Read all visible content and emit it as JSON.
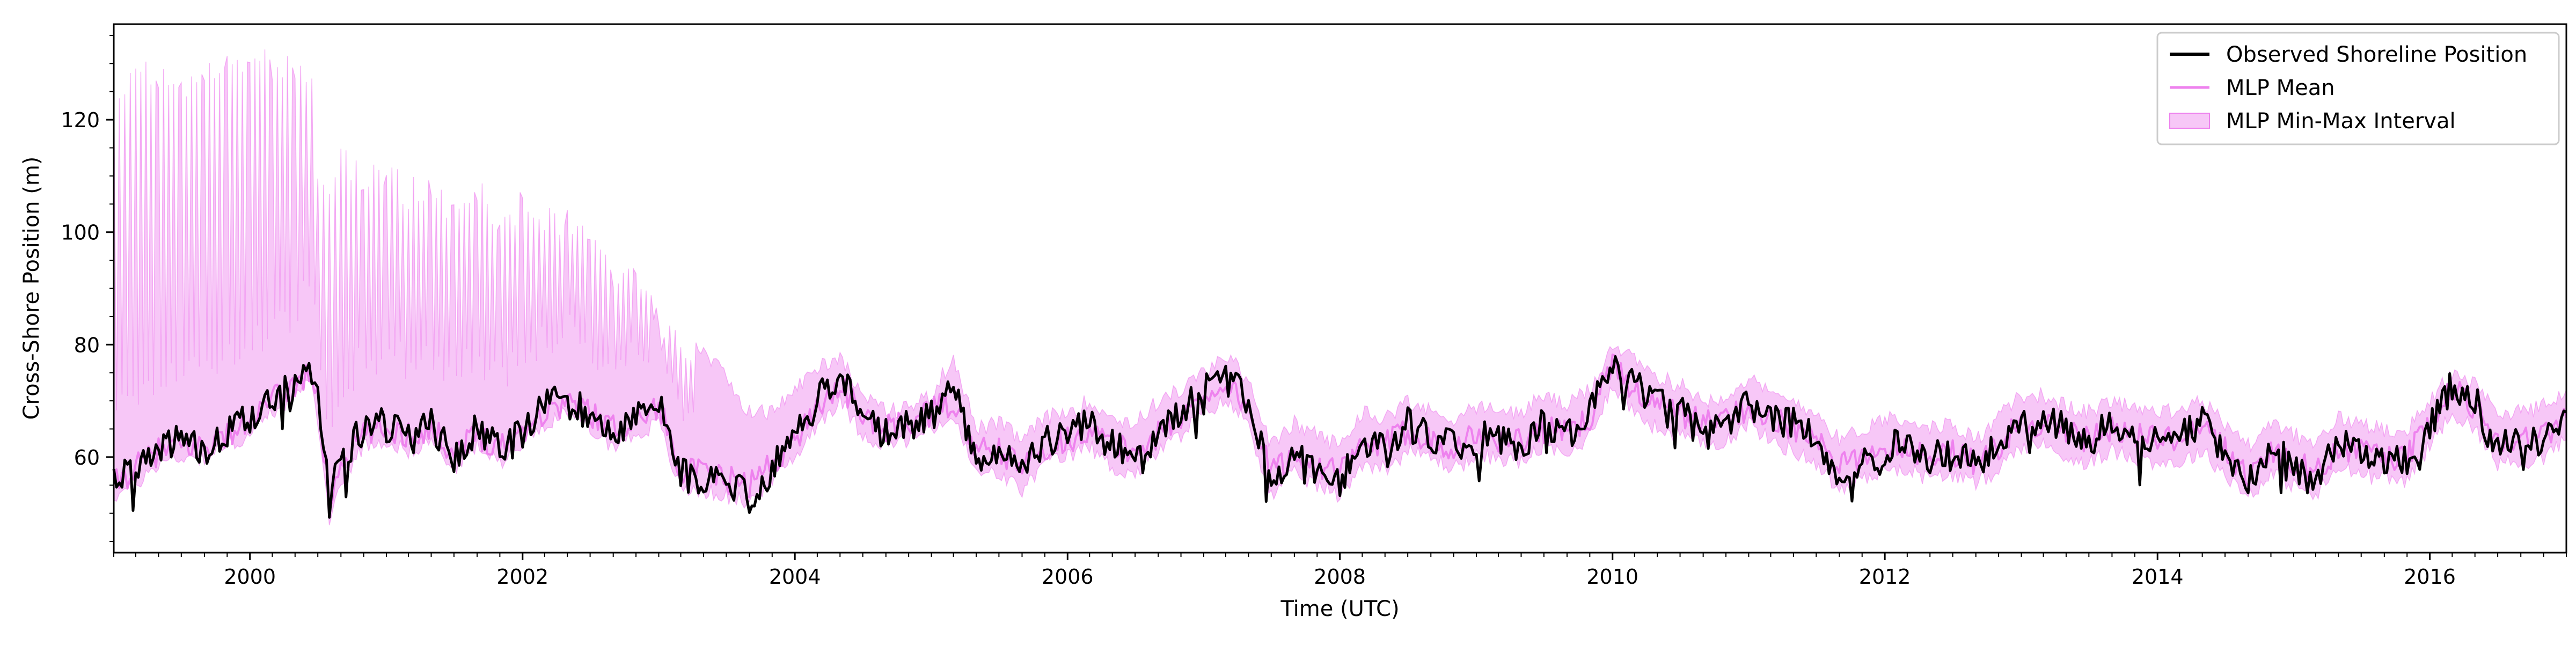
{
  "chart_data": {
    "type": "line",
    "title": "",
    "xlabel": "Time (UTC)",
    "ylabel": "Cross-Shore Position (m)",
    "xlim": [
      "1999-01-01",
      "2017-01-01"
    ],
    "ylim": [
      43,
      137
    ],
    "x_ticks": [
      "2000",
      "2002",
      "2004",
      "2006",
      "2008",
      "2010",
      "2012",
      "2014",
      "2016"
    ],
    "y_ticks": [
      60,
      80,
      100,
      120
    ],
    "grid": false,
    "legend_position": "top-right",
    "legend": [
      {
        "label": "Observed Shoreline Position",
        "kind": "line",
        "color": "#000000"
      },
      {
        "label": "MLP Mean",
        "kind": "line",
        "color": "#ee82ee"
      },
      {
        "label": "MLP Min-Max Interval",
        "kind": "patch",
        "color": "#ee82ee"
      }
    ],
    "colors": {
      "observed": "#000000",
      "mean": "#ee82ee",
      "interval": "#ee82ee"
    },
    "series": [
      {
        "name": "Observed Shoreline Position",
        "x": [
          "1999-01-01",
          "1999-03-01",
          "1999-05-01",
          "1999-07-01",
          "1999-09-01",
          "1999-11-01",
          "2000-01-01",
          "2000-03-01",
          "2000-05-01",
          "2000-06-15",
          "2000-07-01",
          "2000-08-01",
          "2000-09-01",
          "2000-11-01",
          "2001-01-01",
          "2001-03-01",
          "2001-05-01",
          "2001-07-01",
          "2001-09-01",
          "2001-11-01",
          "2002-01-01",
          "2002-03-01",
          "2002-05-01",
          "2002-07-01",
          "2002-09-01",
          "2002-11-01",
          "2003-01-01",
          "2003-03-01",
          "2003-05-01",
          "2003-07-01",
          "2003-09-01",
          "2003-11-01",
          "2004-01-01",
          "2004-03-01",
          "2004-05-01",
          "2004-07-01",
          "2004-09-01",
          "2004-11-01",
          "2005-01-01",
          "2005-03-01",
          "2005-05-01",
          "2005-07-01",
          "2005-09-01",
          "2005-11-01",
          "2006-01-01",
          "2006-03-01",
          "2006-05-01",
          "2006-07-01",
          "2006-09-01",
          "2006-11-01",
          "2007-01-01",
          "2007-03-01",
          "2007-05-01",
          "2007-07-01",
          "2007-09-01",
          "2007-11-01",
          "2008-01-01",
          "2008-03-01",
          "2008-05-01",
          "2008-07-01",
          "2008-09-01",
          "2008-11-01",
          "2009-01-01",
          "2009-03-01",
          "2009-05-01",
          "2009-07-01",
          "2009-09-01",
          "2009-11-01",
          "2010-01-01",
          "2010-03-01",
          "2010-05-01",
          "2010-07-01",
          "2010-09-01",
          "2010-11-01",
          "2011-01-01",
          "2011-03-01",
          "2011-05-01",
          "2011-07-01",
          "2011-09-01",
          "2011-11-01",
          "2012-01-01",
          "2012-03-01",
          "2012-05-01",
          "2012-07-01",
          "2012-09-01",
          "2012-11-01",
          "2013-01-01",
          "2013-03-01",
          "2013-05-01",
          "2013-07-01",
          "2013-09-01",
          "2013-11-01",
          "2014-01-01",
          "2014-03-01",
          "2014-05-01",
          "2014-07-01",
          "2014-09-01",
          "2014-11-01",
          "2015-01-01",
          "2015-03-01",
          "2015-05-01",
          "2015-07-01",
          "2015-09-01",
          "2015-11-01",
          "2016-01-01",
          "2016-03-01",
          "2016-05-01",
          "2016-07-01",
          "2016-09-01",
          "2016-11-01",
          "2017-01-01"
        ],
        "y": [
          56,
          57,
          62,
          63,
          61,
          64,
          67,
          71,
          74,
          76,
          72,
          54,
          60,
          65,
          66,
          63,
          66,
          60,
          65,
          61,
          64,
          69,
          71,
          67,
          64,
          68,
          70,
          57,
          56,
          55,
          53,
          58,
          64,
          70,
          75,
          68,
          64,
          66,
          67,
          72,
          60,
          62,
          57,
          63,
          64,
          66,
          62,
          60,
          65,
          68,
          72,
          74,
          70,
          55,
          61,
          58,
          56,
          63,
          61,
          66,
          63,
          62,
          63,
          64,
          62,
          66,
          64,
          68,
          76,
          73,
          70,
          69,
          65,
          67,
          70,
          67,
          66,
          63,
          57,
          60,
          61,
          63,
          59,
          62,
          58,
          63,
          67,
          66,
          65,
          63,
          66,
          64,
          63,
          64,
          66,
          60,
          56,
          62,
          58,
          55,
          63,
          61,
          60,
          59,
          66,
          73,
          70,
          62,
          64,
          63,
          68
        ]
      },
      {
        "name": "MLP Mean",
        "x": [
          "1999-01-01",
          "1999-03-01",
          "1999-05-01",
          "1999-07-01",
          "1999-09-01",
          "1999-11-01",
          "2000-01-01",
          "2000-03-01",
          "2000-05-01",
          "2000-06-15",
          "2000-07-01",
          "2000-08-01",
          "2000-09-01",
          "2000-11-01",
          "2001-01-01",
          "2001-03-01",
          "2001-05-01",
          "2001-07-01",
          "2001-09-01",
          "2001-11-01",
          "2002-01-01",
          "2002-03-01",
          "2002-05-01",
          "2002-07-01",
          "2002-09-01",
          "2002-11-01",
          "2003-01-01",
          "2003-03-01",
          "2003-05-01",
          "2003-07-01",
          "2003-09-01",
          "2003-11-01",
          "2004-01-01",
          "2004-03-01",
          "2004-05-01",
          "2004-07-01",
          "2004-09-01",
          "2004-11-01",
          "2005-01-01",
          "2005-03-01",
          "2005-05-01",
          "2005-07-01",
          "2005-09-01",
          "2005-11-01",
          "2006-01-01",
          "2006-03-01",
          "2006-05-01",
          "2006-07-01",
          "2006-09-01",
          "2006-11-01",
          "2007-01-01",
          "2007-03-01",
          "2007-05-01",
          "2007-07-01",
          "2007-09-01",
          "2007-11-01",
          "2008-01-01",
          "2008-03-01",
          "2008-05-01",
          "2008-07-01",
          "2008-09-01",
          "2008-11-01",
          "2009-01-01",
          "2009-03-01",
          "2009-05-01",
          "2009-07-01",
          "2009-09-01",
          "2009-11-01",
          "2010-01-01",
          "2010-03-01",
          "2010-05-01",
          "2010-07-01",
          "2010-09-01",
          "2010-11-01",
          "2011-01-01",
          "2011-03-01",
          "2011-05-01",
          "2011-07-01",
          "2011-09-01",
          "2011-11-01",
          "2012-01-01",
          "2012-03-01",
          "2012-05-01",
          "2012-07-01",
          "2012-09-01",
          "2012-11-01",
          "2013-01-01",
          "2013-03-01",
          "2013-05-01",
          "2013-07-01",
          "2013-09-01",
          "2013-11-01",
          "2014-01-01",
          "2014-03-01",
          "2014-05-01",
          "2014-07-01",
          "2014-09-01",
          "2014-11-01",
          "2015-01-01",
          "2015-03-01",
          "2015-05-01",
          "2015-07-01",
          "2015-09-01",
          "2015-11-01",
          "2016-01-01",
          "2016-03-01",
          "2016-05-01",
          "2016-07-01",
          "2016-09-01",
          "2016-11-01",
          "2017-01-01"
        ],
        "y": [
          55,
          58,
          61,
          62,
          62,
          64,
          66,
          70,
          73,
          75,
          70,
          52,
          59,
          64,
          65,
          64,
          65,
          61,
          64,
          62,
          65,
          68,
          70,
          68,
          65,
          67,
          69,
          58,
          57,
          56,
          55,
          59,
          63,
          69,
          73,
          67,
          65,
          66,
          68,
          70,
          61,
          61,
          58,
          62,
          63,
          65,
          62,
          61,
          64,
          67,
          71,
          73,
          69,
          57,
          60,
          59,
          57,
          62,
          62,
          65,
          63,
          62,
          64,
          63,
          63,
          65,
          64,
          67,
          77,
          72,
          69,
          68,
          66,
          67,
          69,
          67,
          65,
          63,
          58,
          60,
          62,
          62,
          60,
          61,
          59,
          62,
          66,
          66,
          64,
          63,
          65,
          64,
          63,
          63,
          65,
          61,
          57,
          61,
          59,
          57,
          62,
          61,
          60,
          60,
          66,
          72,
          69,
          63,
          63,
          64,
          67
        ]
      },
      {
        "name": "MLP Min-Max Interval",
        "x": [
          "1999-01-01",
          "1999-03-01",
          "1999-05-01",
          "1999-07-01",
          "1999-09-01",
          "1999-11-01",
          "2000-01-01",
          "2000-03-01",
          "2000-05-01",
          "2000-06-15",
          "2000-07-01",
          "2000-08-01",
          "2000-09-01",
          "2000-11-01",
          "2001-01-01",
          "2001-03-01",
          "2001-05-01",
          "2001-07-01",
          "2001-09-01",
          "2001-11-01",
          "2002-01-01",
          "2002-03-01",
          "2002-05-01",
          "2002-07-01",
          "2002-09-01",
          "2002-11-01",
          "2003-01-01",
          "2003-03-01",
          "2003-05-01",
          "2003-07-01",
          "2003-09-01",
          "2003-11-01",
          "2004-01-01",
          "2004-03-01",
          "2004-05-01",
          "2004-07-01",
          "2004-09-01",
          "2004-11-01",
          "2005-01-01",
          "2005-03-01",
          "2005-05-01",
          "2005-07-01",
          "2005-09-01",
          "2005-11-01",
          "2006-01-01",
          "2006-03-01",
          "2006-05-01",
          "2006-07-01",
          "2006-09-01",
          "2006-11-01",
          "2007-01-01",
          "2007-03-01",
          "2007-05-01",
          "2007-07-01",
          "2007-09-01",
          "2007-11-01",
          "2008-01-01",
          "2008-03-01",
          "2008-05-01",
          "2008-07-01",
          "2008-09-01",
          "2008-11-01",
          "2009-01-01",
          "2009-03-01",
          "2009-05-01",
          "2009-07-01",
          "2009-09-01",
          "2009-11-01",
          "2010-01-01",
          "2010-03-01",
          "2010-05-01",
          "2010-07-01",
          "2010-09-01",
          "2010-11-01",
          "2011-01-01",
          "2011-03-01",
          "2011-05-01",
          "2011-07-01",
          "2011-09-01",
          "2011-11-01",
          "2012-01-01",
          "2012-03-01",
          "2012-05-01",
          "2012-07-01",
          "2012-09-01",
          "2012-11-01",
          "2013-01-01",
          "2013-03-01",
          "2013-05-01",
          "2013-07-01",
          "2013-09-01",
          "2013-11-01",
          "2014-01-01",
          "2014-03-01",
          "2014-05-01",
          "2014-07-01",
          "2014-09-01",
          "2014-11-01",
          "2015-01-01",
          "2015-03-01",
          "2015-05-01",
          "2015-07-01",
          "2015-09-01",
          "2015-11-01",
          "2016-01-01",
          "2016-03-01",
          "2016-05-01",
          "2016-07-01",
          "2016-09-01",
          "2016-11-01",
          "2017-01-01"
        ],
        "y_min": [
          53,
          55,
          59,
          60,
          60,
          62,
          64,
          68,
          71,
          73,
          67,
          48,
          56,
          62,
          63,
          61,
          63,
          58,
          62,
          59,
          63,
          66,
          68,
          65,
          62,
          64,
          66,
          54,
          54,
          53,
          52,
          56,
          60,
          66,
          70,
          64,
          62,
          63,
          65,
          67,
          57,
          57,
          54,
          59,
          60,
          62,
          58,
          57,
          61,
          64,
          68,
          70,
          66,
          53,
          57,
          55,
          53,
          59,
          58,
          61,
          60,
          58,
          60,
          60,
          59,
          62,
          60,
          64,
          73,
          68,
          65,
          64,
          62,
          63,
          66,
          63,
          61,
          59,
          54,
          56,
          58,
          58,
          56,
          57,
          55,
          58,
          62,
          62,
          60,
          59,
          61,
          60,
          59,
          59,
          61,
          57,
          53,
          57,
          55,
          53,
          58,
          57,
          56,
          56,
          62,
          68,
          65,
          59,
          59,
          60,
          63
        ],
        "y_max": [
          128,
          130,
          131,
          128,
          131,
          132,
          133,
          133,
          132,
          132,
          114,
          112,
          116,
          113,
          114,
          110,
          112,
          106,
          110,
          104,
          108,
          106,
          104,
          100,
          96,
          95,
          88,
          82,
          79,
          74,
          68,
          68,
          72,
          76,
          78,
          71,
          68,
          69,
          71,
          78,
          65,
          66,
          63,
          67,
          68,
          70,
          67,
          66,
          70,
          72,
          75,
          78,
          74,
          62,
          66,
          64,
          62,
          68,
          67,
          70,
          68,
          67,
          69,
          68,
          68,
          71,
          69,
          72,
          80,
          77,
          74,
          73,
          70,
          71,
          74,
          71,
          70,
          68,
          63,
          65,
          67,
          67,
          65,
          66,
          63,
          67,
          71,
          71,
          69,
          68,
          70,
          69,
          68,
          68,
          70,
          66,
          62,
          66,
          64,
          62,
          67,
          66,
          65,
          65,
          70,
          75,
          73,
          68,
          68,
          69,
          72
        ]
      }
    ]
  }
}
